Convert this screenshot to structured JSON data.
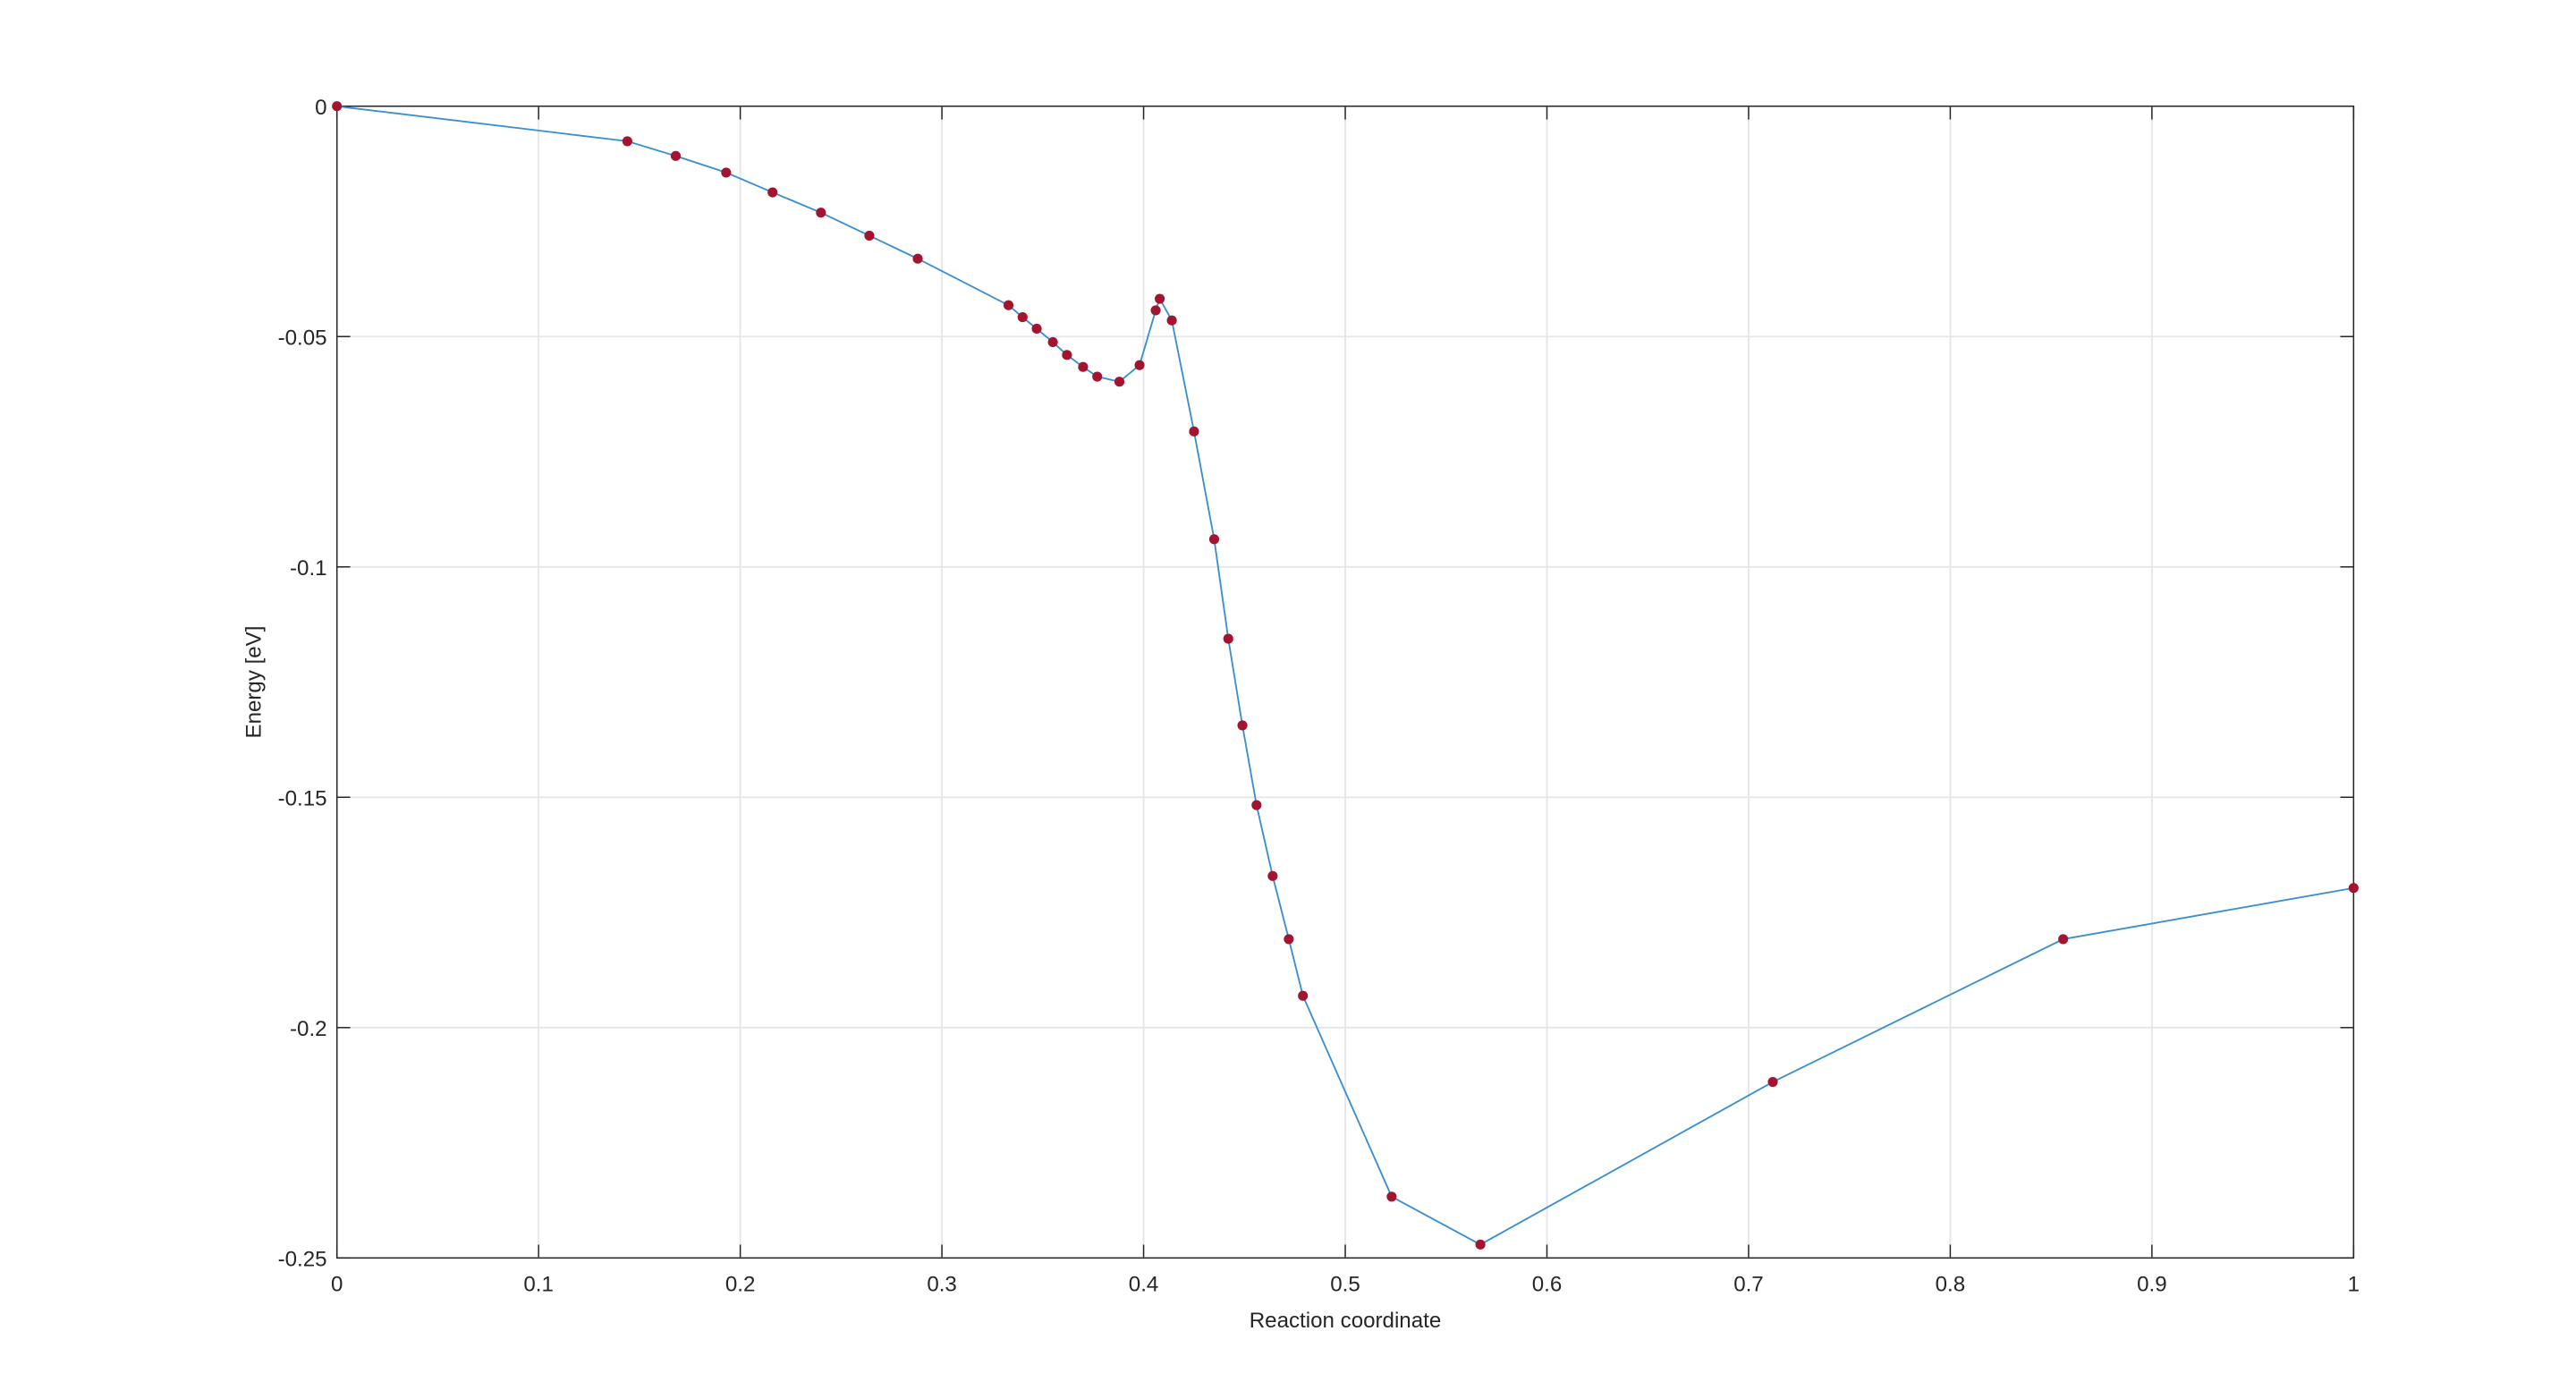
{
  "chart_data": {
    "type": "line",
    "xlabel": "Reaction coordinate",
    "ylabel": "Energy [eV]",
    "x": [
      0,
      0.144,
      0.168,
      0.193,
      0.216,
      0.24,
      0.264,
      0.288,
      0.333,
      0.34,
      0.347,
      0.355,
      0.362,
      0.37,
      0.377,
      0.388,
      0.398,
      0.406,
      0.408,
      0.414,
      0.425,
      0.435,
      0.442,
      0.449,
      0.456,
      0.464,
      0.472,
      0.479,
      0.523,
      0.567,
      0.712,
      0.856,
      1.0
    ],
    "series": [
      {
        "color": "#3b8fcf",
        "marker_color": "#a2142f",
        "values": [
          0,
          -0.0076,
          -0.0108,
          -0.0144,
          -0.0187,
          -0.0231,
          -0.0281,
          -0.0331,
          -0.0432,
          -0.0458,
          -0.0483,
          -0.0512,
          -0.054,
          -0.0566,
          -0.0587,
          -0.0598,
          -0.0562,
          -0.0443,
          -0.0418,
          -0.0465,
          -0.0706,
          -0.094,
          -0.1156,
          -0.1344,
          -0.1517,
          -0.1671,
          -0.1808,
          -0.1931,
          -0.2367,
          -0.2471,
          -0.2118,
          -0.1808,
          -0.1697
        ]
      }
    ],
    "xlim": [
      0,
      1
    ],
    "xticks": [
      0,
      0.1,
      0.2,
      0.3,
      0.4,
      0.5,
      0.6,
      0.7,
      0.8,
      0.9,
      1
    ],
    "ylim": [
      -0.25,
      0
    ],
    "yticks": [
      -0.25,
      -0.2,
      -0.15,
      -0.1,
      -0.05,
      0
    ],
    "grid": true
  }
}
